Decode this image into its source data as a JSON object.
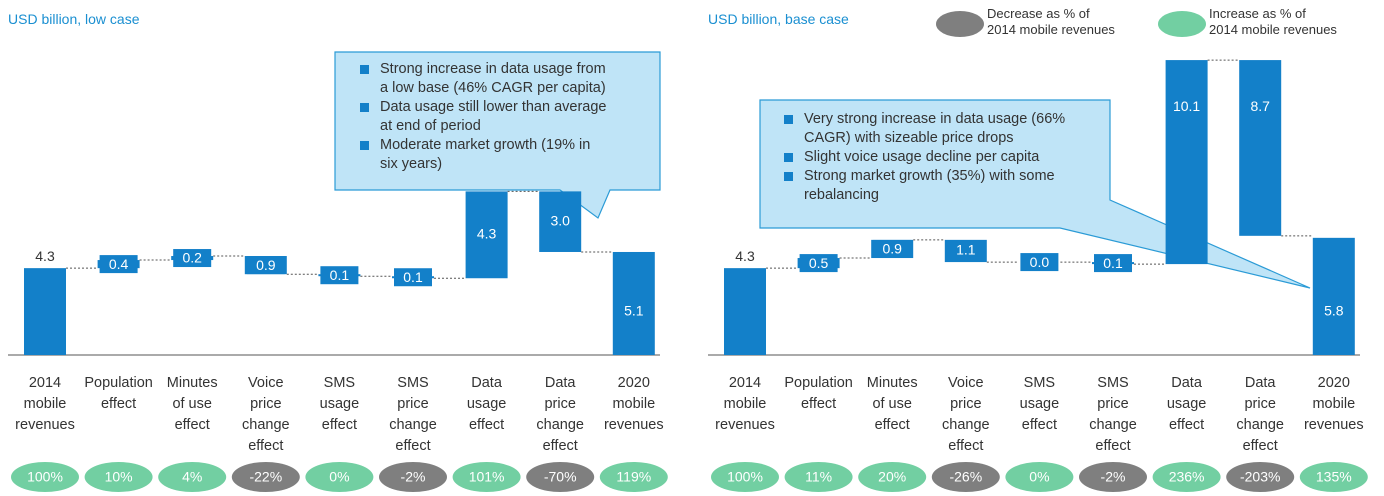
{
  "chart_data": [
    {
      "type": "waterfall",
      "subtitle": "USD billion, low case",
      "categories": [
        "2014\nmobile\nrevenues",
        "Population\neffect",
        "Minutes\nof use\neffect",
        "Voice\nprice\nchange\neffect",
        "SMS\nusage\neffect",
        "SMS\nprice\nchange\neffect",
        "Data\nusage\neffect",
        "Data\nprice\nchange\neffect",
        "2020\nmobile\nrevenues"
      ],
      "measure": [
        "total",
        "relative",
        "relative",
        "relative",
        "relative",
        "relative",
        "relative",
        "relative",
        "total"
      ],
      "values": [
        4.3,
        0.4,
        0.2,
        -0.9,
        -0.1,
        -0.1,
        4.3,
        -3.0,
        5.1
      ],
      "value_labels": [
        "4.3",
        "0.4",
        "0.2",
        "0.9",
        "0.1",
        "0.1",
        "4.3",
        "3.0",
        "5.1"
      ],
      "color": "#1380c9",
      "badges": {
        "values": [
          100,
          10,
          4,
          -22,
          0,
          -2,
          101,
          -70,
          119
        ],
        "value_labels": [
          "100%",
          "10%",
          "4%",
          "-22%",
          "0%",
          "-2%",
          "101%",
          "-70%",
          "119%"
        ]
      },
      "annotation": [
        "Strong increase in data usage from\na low base (46% CAGR per capita)",
        "Data usage still lower than average\nat end of period",
        "Moderate market growth (19% in\nsix years)"
      ]
    },
    {
      "type": "waterfall",
      "subtitle": "USD billion, base case",
      "categories": [
        "2014\nmobile\nrevenues",
        "Population\neffect",
        "Minutes\nof use\neffect",
        "Voice\nprice\nchange\neffect",
        "SMS\nusage\neffect",
        "SMS\nprice\nchange\neffect",
        "Data\nusage\neffect",
        "Data\nprice\nchange\neffect",
        "2020\nmobile\nrevenues"
      ],
      "measure": [
        "total",
        "relative",
        "relative",
        "relative",
        "relative",
        "relative",
        "relative",
        "relative",
        "total"
      ],
      "values": [
        4.3,
        0.5,
        0.9,
        -1.1,
        0.0,
        -0.1,
        10.1,
        -8.7,
        5.8
      ],
      "value_labels": [
        "4.3",
        "0.5",
        "0.9",
        "1.1",
        "0.0",
        "0.1",
        "10.1",
        "8.7",
        "5.8"
      ],
      "color": "#1380c9",
      "badges": {
        "values": [
          100,
          11,
          20,
          -26,
          0,
          -2,
          236,
          -203,
          135
        ],
        "value_labels": [
          "100%",
          "11%",
          "20%",
          "-26%",
          "0%",
          "-2%",
          "236%",
          "-203%",
          "135%"
        ]
      },
      "annotation": [
        "Very strong increase in data usage (66%\nCAGR) with sizeable price drops",
        "Slight voice usage decline per capita",
        "Strong market growth (35%) with some\nrebalancing"
      ]
    }
  ],
  "legend": [
    {
      "name": "Decrease as % of\n2014 mobile revenues",
      "color": "#7f7f7f"
    },
    {
      "name": "Increase as % of\n2014 mobile revenues",
      "color": "#72cfa2"
    }
  ]
}
